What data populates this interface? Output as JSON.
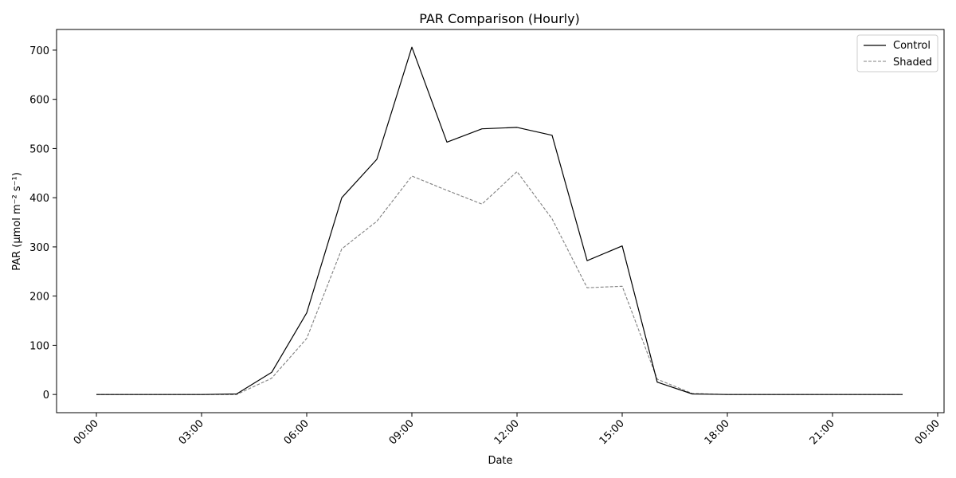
{
  "chart_data": {
    "type": "line",
    "title": "PAR Comparison (Hourly)",
    "xlabel": "Date",
    "ylabel": "PAR (µmol m⁻² s⁻¹)",
    "x": [
      "00:00",
      "01:00",
      "02:00",
      "03:00",
      "04:00",
      "05:00",
      "06:00",
      "07:00",
      "08:00",
      "09:00",
      "10:00",
      "11:00",
      "12:00",
      "13:00",
      "14:00",
      "15:00",
      "16:00",
      "17:00",
      "18:00",
      "19:00",
      "20:00",
      "21:00",
      "22:00",
      "23:00"
    ],
    "x_ticks": [
      "00:00",
      "03:00",
      "06:00",
      "09:00",
      "12:00",
      "15:00",
      "18:00",
      "21:00",
      "00:00"
    ],
    "y_ticks": [
      0,
      100,
      200,
      300,
      400,
      500,
      600,
      700
    ],
    "ylim": [
      -37,
      742
    ],
    "grid": false,
    "legend_position": "top-right",
    "series": [
      {
        "name": "Control",
        "color": "#000000",
        "dash": "solid",
        "values": [
          0,
          0,
          0,
          0,
          1,
          45,
          166,
          400,
          478,
          706,
          513,
          540,
          543,
          527,
          272,
          302,
          25,
          1,
          0,
          0,
          0,
          0,
          0,
          0
        ]
      },
      {
        "name": "Shaded",
        "color": "#808080",
        "dash": "dashed",
        "values": [
          0,
          0,
          0,
          0,
          0,
          33,
          114,
          296,
          352,
          444,
          415,
          387,
          453,
          357,
          217,
          220,
          31,
          2,
          0,
          0,
          0,
          0,
          0,
          0
        ]
      }
    ]
  }
}
